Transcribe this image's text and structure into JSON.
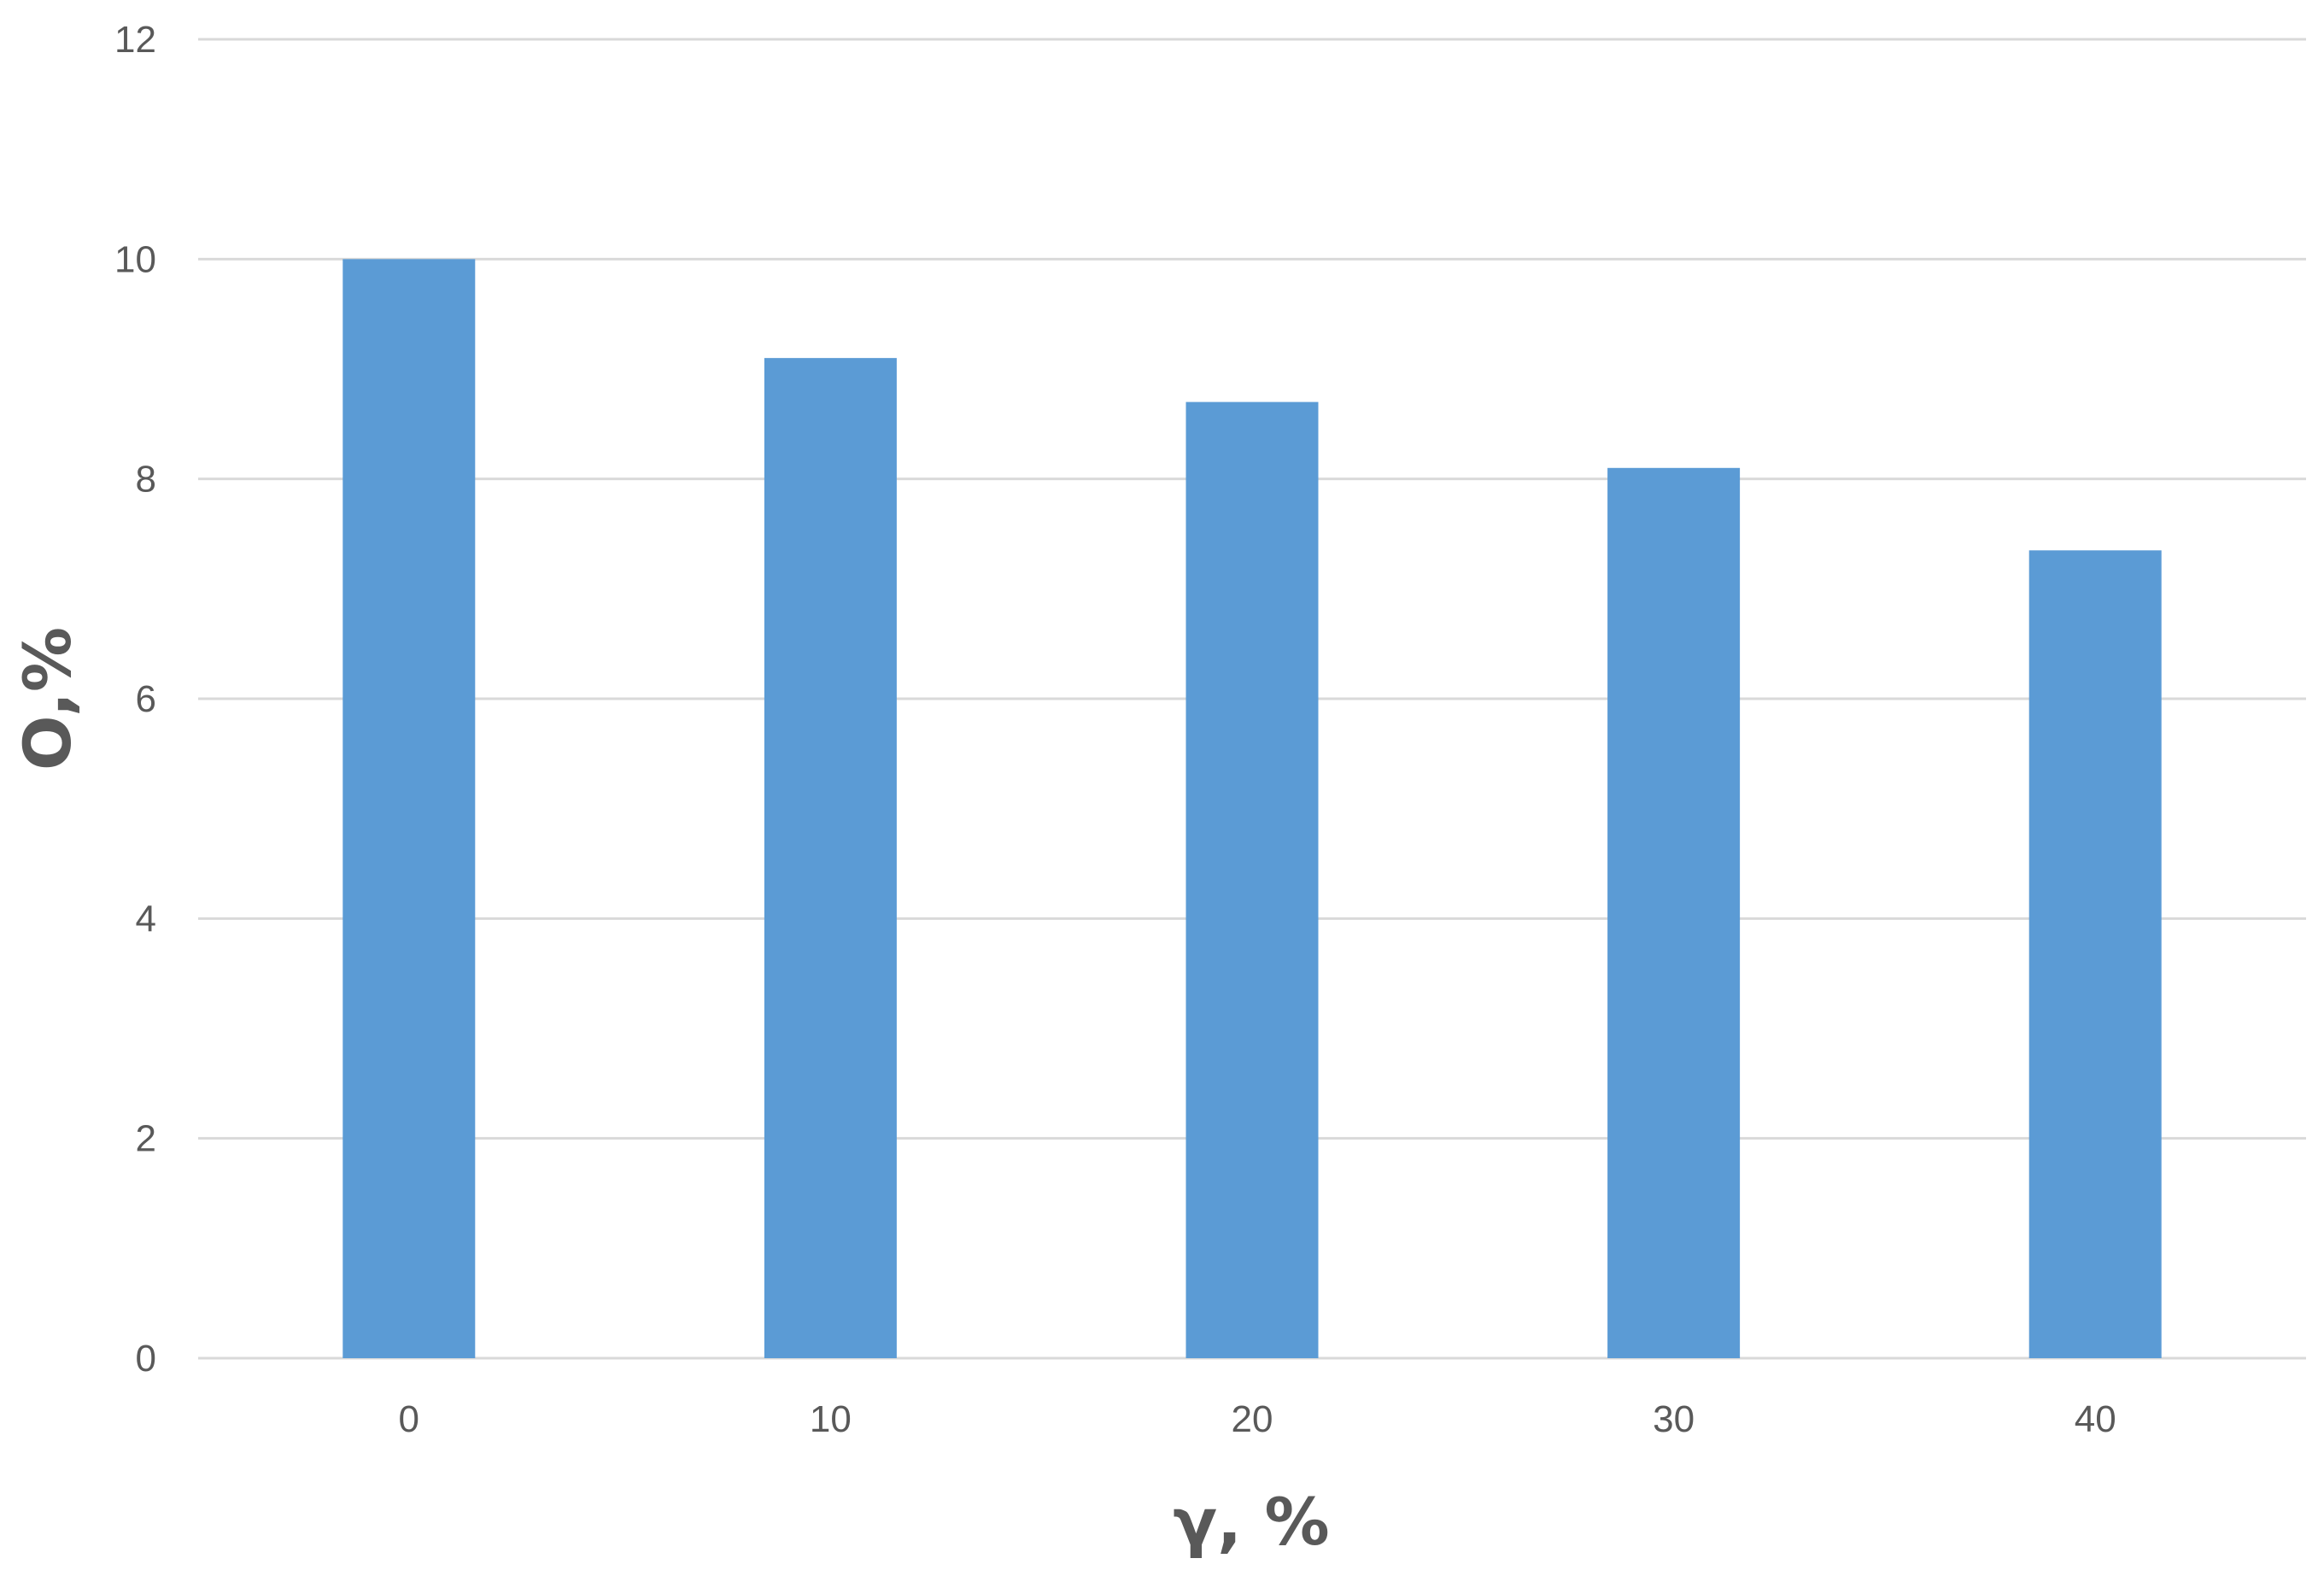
{
  "chart_data": {
    "type": "bar",
    "categories": [
      "0",
      "10",
      "20",
      "30",
      "40"
    ],
    "values": [
      10.0,
      9.1,
      8.7,
      8.1,
      7.35
    ],
    "title": "",
    "xlabel": "γ, %",
    "ylabel": "O,%",
    "ylim": [
      0,
      12
    ],
    "yticks": [
      "0",
      "2",
      "4",
      "6",
      "8",
      "10",
      "12"
    ],
    "grid": true,
    "legend": "none",
    "bar_color": "#5b9bd5"
  }
}
